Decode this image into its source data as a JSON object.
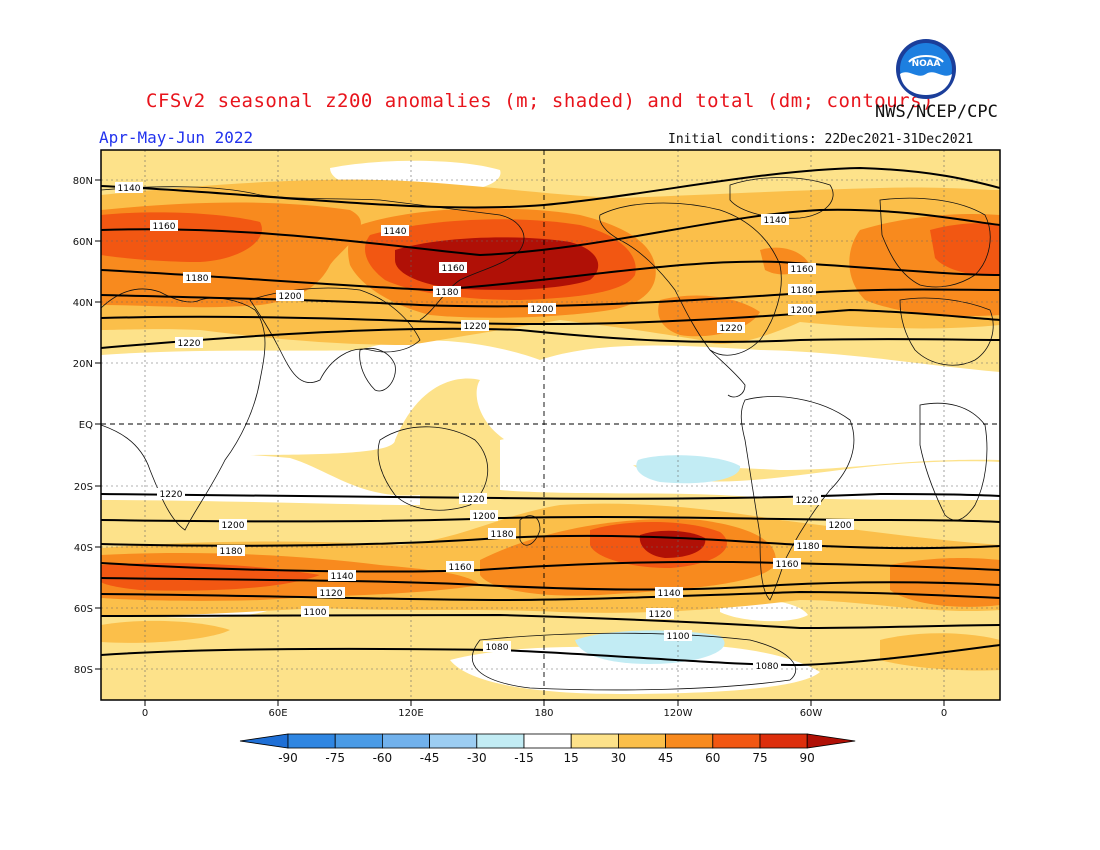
{
  "header": {
    "title": "CFSv2 seasonal z200 anomalies (m; shaded) and total (dm; contours)",
    "agency": "NWS/NCEP/CPC",
    "season": "Apr-May-Jun 2022",
    "initial_conditions": "Initial conditions: 22Dec2021-31Dec2021",
    "logo_text": "NOAA"
  },
  "axes": {
    "lat_ticks": [
      "80N",
      "60N",
      "40N",
      "20N",
      "EQ",
      "20S",
      "40S",
      "60S",
      "80S"
    ],
    "lon_ticks": [
      "0",
      "60E",
      "120E",
      "180",
      "120W",
      "60W",
      "0"
    ]
  },
  "colorbar": {
    "ticks": [
      "-90",
      "-75",
      "-60",
      "-45",
      "-30",
      "-15",
      "15",
      "30",
      "45",
      "60",
      "75",
      "90"
    ],
    "colors": [
      "#1e6fd6",
      "#2f86e2",
      "#4a9be6",
      "#71b1ec",
      "#9ccdf2",
      "#c2ecf4",
      "#ffffff",
      "#fde28a",
      "#fbbf4a",
      "#f88a1e",
      "#f25712",
      "#dd2e0c",
      "#b01006"
    ]
  },
  "contour_labels": [
    "1140",
    "1160",
    "1180",
    "1200",
    "1220",
    "1120",
    "1100",
    "1080"
  ],
  "colors": {
    "title": "#e8141c",
    "season": "#2233ee",
    "land_outline": "#111111"
  }
}
